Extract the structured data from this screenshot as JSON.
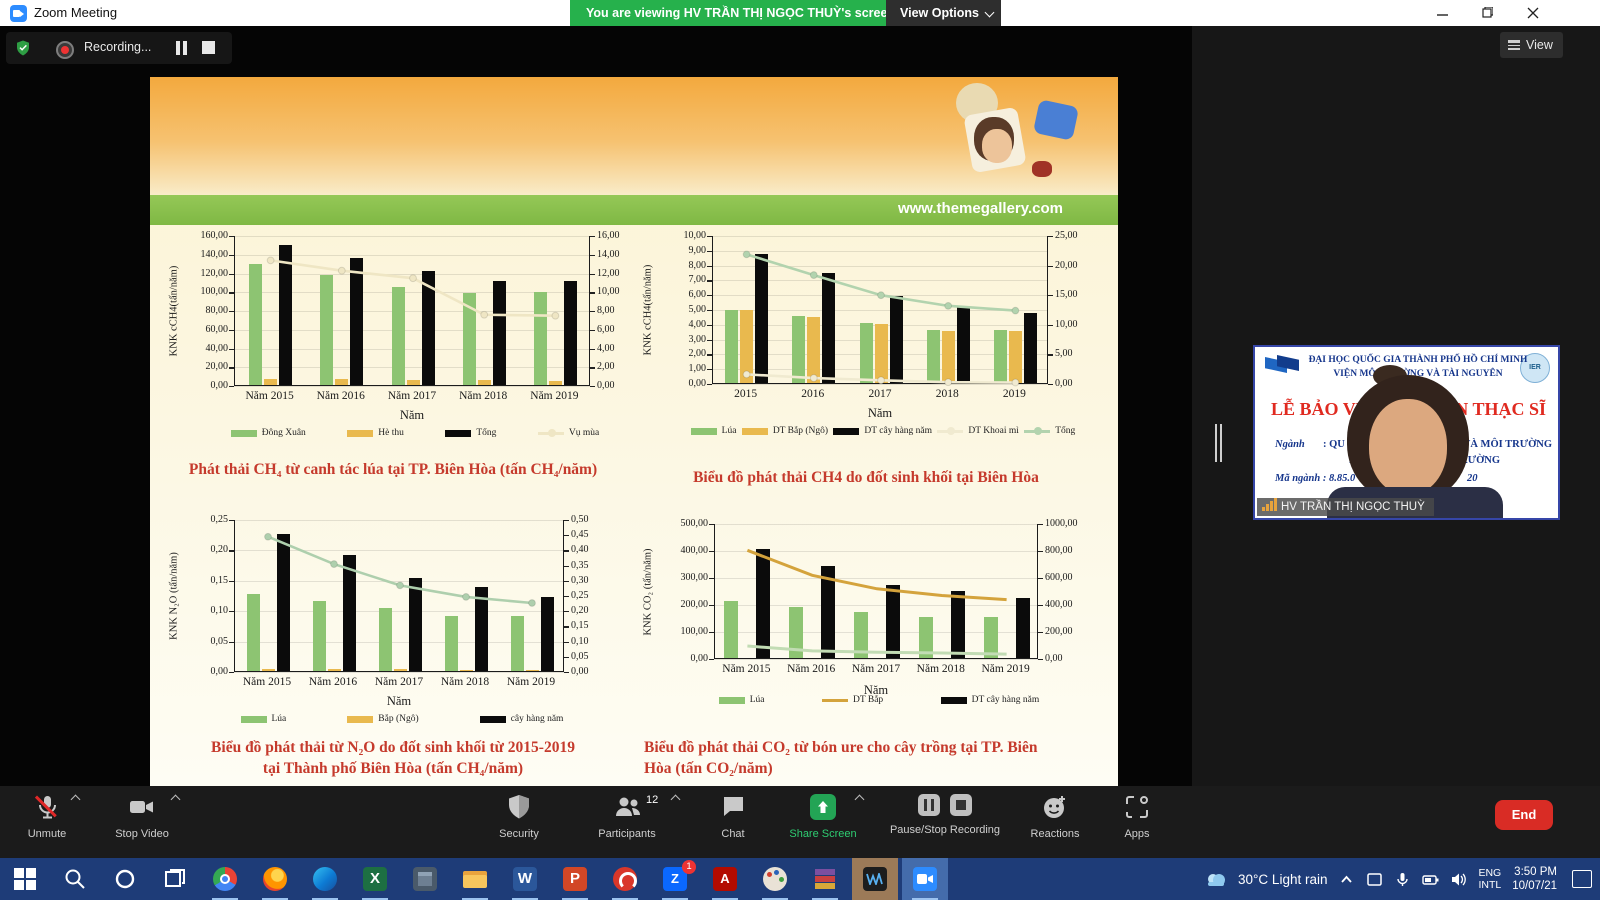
{
  "title_bar": {
    "app_title": "Zoom Meeting",
    "viewing_banner": "You are viewing HV TRẦN THỊ NGỌC THUỲ's screen",
    "view_options_label": "View Options"
  },
  "meeting_bar": {
    "recording_label": "Recording...",
    "view_button_label": "View"
  },
  "slide": {
    "website": "www.themegallery.com"
  },
  "chart_data": [
    {
      "id": "c1",
      "type": "bar+line",
      "ylabel_left": "KNK cCH4(tấn/năm)",
      "left_ticks": [
        "160,00",
        "140,00",
        "120,00",
        "100,00",
        "80,00",
        "60,00",
        "40,00",
        "20,00",
        "0,00"
      ],
      "right_ticks": [
        "16,00",
        "14,00",
        "12,00",
        "10,00",
        "8,00",
        "6,00",
        "4,00",
        "2,00",
        "0,00"
      ],
      "left_max": 160,
      "right_max": 16,
      "categories": [
        "Năm 2015",
        "Năm 2016",
        "Năm 2017",
        "Năm 2018",
        "Năm 2019"
      ],
      "xlabel": "Năm",
      "bar_series": [
        {
          "name": "Đông Xuân",
          "color": "#8dc472",
          "values": [
            129,
            117,
            105,
            98,
            99
          ]
        },
        {
          "name": "Hè thu",
          "color": "#e9b94e",
          "values": [
            6,
            6,
            5,
            5,
            4
          ]
        },
        {
          "name": "Tổng",
          "color": "#0b0b0b",
          "values": [
            149,
            135,
            122,
            111,
            111
          ]
        }
      ],
      "line_series": [
        {
          "name": "Vụ mùa",
          "color": "#efe6c4",
          "axis": "right",
          "marker": true,
          "values": [
            13.4,
            12.3,
            11.5,
            7.6,
            7.5
          ]
        }
      ],
      "legend": [
        {
          "label": "Đông Xuân",
          "type": "bar",
          "color": "#8dc472"
        },
        {
          "label": "Hè thu",
          "type": "bar",
          "color": "#e9b94e"
        },
        {
          "label": "Tổng",
          "type": "bar",
          "color": "#0b0b0b"
        },
        {
          "label": "Vụ mùa",
          "type": "line",
          "color": "#efe6c4",
          "marker": true
        }
      ],
      "caption_lines": [
        "Phát thải CH₄ từ canh tác lúa tại TP. Biên Hòa (tấn CH₄/năm)"
      ]
    },
    {
      "id": "c2",
      "type": "bar+line",
      "ylabel_left": "KNK cCH4(tấn/năm)",
      "left_ticks": [
        "10,00",
        "9,00",
        "8,00",
        "7,00",
        "6,00",
        "5,00",
        "4,00",
        "3,00",
        "2,00",
        "1,00",
        "0,00"
      ],
      "right_ticks": [
        "25,00",
        "20,00",
        "15,00",
        "10,00",
        "5,00",
        "0,00"
      ],
      "left_max": 10,
      "right_max": 25,
      "categories": [
        "2015",
        "2016",
        "2017",
        "2018",
        "2019"
      ],
      "xlabel": "Năm",
      "bar_series": [
        {
          "name": "Lúa",
          "color": "#8dc472",
          "values": [
            4.9,
            4.5,
            4.05,
            3.55,
            3.55
          ]
        },
        {
          "name": "DT Bắp (Ngô)",
          "color": "#e9b94e",
          "values": [
            4.9,
            4.45,
            4.0,
            3.5,
            3.5
          ]
        },
        {
          "name": "DT cây hàng năm",
          "color": "#0b0b0b",
          "values": [
            8.75,
            7.4,
            5.85,
            5.15,
            4.75
          ]
        }
      ],
      "line_series": [
        {
          "name": "DT Khoai mì",
          "color": "#f0ead0",
          "axis": "left",
          "marker": true,
          "values": [
            0.65,
            0.4,
            0.25,
            0.12,
            0.1
          ]
        },
        {
          "name": "Tổng",
          "color": "#b2d3ae",
          "axis": "right",
          "marker": true,
          "values": [
            21.9,
            18.4,
            15.0,
            13.2,
            12.4
          ]
        }
      ],
      "legend": [
        {
          "label": "Lúa",
          "type": "bar",
          "color": "#8dc472"
        },
        {
          "label": "DT Bắp (Ngô)",
          "type": "bar",
          "color": "#e9b94e"
        },
        {
          "label": "DT cây hàng năm",
          "type": "bar",
          "color": "#0b0b0b"
        },
        {
          "label": "DT Khoai mì",
          "type": "line",
          "color": "#f0ead0",
          "marker": true
        },
        {
          "label": "Tổng",
          "type": "line",
          "color": "#b2d3ae",
          "marker": true
        }
      ],
      "caption_lines": [
        "Biểu đồ phát thải CH4 do đốt sinh khối tại Biên Hòa"
      ]
    },
    {
      "id": "c3",
      "type": "bar+line",
      "ylabel_left": "KNK N₂O (tấn/năm)",
      "left_ticks": [
        "0,25",
        "0,20",
        "0,15",
        "0,10",
        "0,05",
        "0,00"
      ],
      "right_ticks": [
        "0,50",
        "0,45",
        "0,40",
        "0,35",
        "0,30",
        "0,25",
        "0,20",
        "0,15",
        "0,10",
        "0,05",
        "0,00"
      ],
      "left_max": 0.25,
      "right_max": 0.5,
      "categories": [
        "Năm 2015",
        "Năm 2016",
        "Năm 2017",
        "Năm 2018",
        "Năm 2019"
      ],
      "xlabel": "Năm",
      "bar_series": [
        {
          "name": "Lúa",
          "color": "#8dc472",
          "values": [
            0.127,
            0.115,
            0.104,
            0.091,
            0.091
          ]
        },
        {
          "name": "Bắp (Ngô)",
          "color": "#e9b94e",
          "values": [
            0.004,
            0.003,
            0.003,
            0.002,
            0.002
          ]
        },
        {
          "name": "cây hàng năm",
          "color": "#0b0b0b",
          "values": [
            0.225,
            0.19,
            0.153,
            0.139,
            0.122
          ]
        }
      ],
      "line_series": [
        {
          "name": "",
          "color": "#aecfad",
          "axis": "right",
          "marker": true,
          "values": [
            0.445,
            0.355,
            0.285,
            0.247,
            0.227
          ]
        }
      ],
      "legend": [
        {
          "label": "Lúa",
          "type": "bar",
          "color": "#8dc472"
        },
        {
          "label": "Bắp (Ngô)",
          "type": "bar",
          "color": "#e9b94e"
        },
        {
          "label": "cây hàng năm",
          "type": "bar",
          "color": "#0b0b0b"
        }
      ],
      "caption_lines": [
        "Biểu đồ phát thải từ N₂O do đốt sinh khối từ 2015-2019",
        "tại Thành phố Biên Hòa (tấn CH₄/năm)"
      ]
    },
    {
      "id": "c4",
      "type": "bar+line",
      "ylabel_left": "KNK CO₂ (tấn/năm)",
      "left_ticks": [
        "500,00",
        "400,00",
        "300,00",
        "200,00",
        "100,00",
        "0,00"
      ],
      "right_ticks": [
        "1000,00",
        "800,00",
        "600,00",
        "400,00",
        "200,00",
        "0,00"
      ],
      "left_max": 500,
      "right_max": 1000,
      "categories": [
        "Năm 2015",
        "Năm 2016",
        "Năm 2017",
        "Năm 2018",
        "Năm 2019"
      ],
      "xlabel": "Năm",
      "bar_series": [
        {
          "name": "Lúa",
          "color": "#8dc472",
          "values": [
            210,
            190,
            172,
            153,
            152
          ]
        },
        {
          "name": "DT cây hàng năm",
          "color": "#0b0b0b",
          "values": [
            405,
            340,
            272,
            248,
            222
          ]
        }
      ],
      "line_series": [
        {
          "name": "DT Bắp",
          "color": "#d4a33c",
          "axis": "right",
          "marker": false,
          "values": [
            805,
            620,
            520,
            470,
            440
          ]
        },
        {
          "name": "",
          "color": "#c2dcb4",
          "axis": "left",
          "marker": false,
          "values": [
            48,
            30,
            25,
            22,
            18
          ]
        }
      ],
      "legend": [
        {
          "label": "Lúa",
          "type": "bar",
          "color": "#8dc472"
        },
        {
          "label": "DT Bắp",
          "type": "line",
          "color": "#d4a33c"
        },
        {
          "label": "DT cây hàng năm",
          "type": "bar",
          "color": "#0b0b0b"
        }
      ],
      "caption_lines": [
        "Biểu đồ phát thải CO₂ từ bón ure cho cây trồng tại TP. Biên",
        "Hòa (tấn CO₂/năm)"
      ]
    }
  ],
  "webcam": {
    "banner_line1": "ĐẠI HỌC QUỐC GIA THÀNH PHỐ HỒ CHÍ MINH",
    "banner_line2": "VIỆN MÔI TRƯỜNG VÀ TÀI NGUYÊN",
    "logo_right_label": "IER",
    "title_left": "LỄ BẢO VỆ",
    "title_right": "VĂN THẠC SĨ",
    "nganh_label": "Ngành",
    "nganh_value_left": ": QU",
    "nganh_value_right": "ÊN VÀ MÔI TRƯỜNG",
    "line2_left": "KỸ",
    "line2_right": "RƯỜNG",
    "ma_nganh_left": "Mã ngành : 8.85.0",
    "ma_nganh_right": "20",
    "name_tag": "HV TRẦN THỊ NGỌC THUỲ"
  },
  "toolbar": {
    "items": [
      {
        "label": "Unmute"
      },
      {
        "label": "Stop Video"
      },
      {
        "label": "Security"
      },
      {
        "label": "Participants",
        "badge": "12"
      },
      {
        "label": "Chat"
      },
      {
        "label": "Share Screen"
      },
      {
        "label": "Pause/Stop Recording"
      },
      {
        "label": "Reactions"
      },
      {
        "label": "Apps"
      }
    ],
    "end_label": "End"
  },
  "taskbar": {
    "weather": "30°C Light rain",
    "language_line1": "ENG",
    "language_line2": "INTL",
    "time": "3:50 PM",
    "date": "10/07/21",
    "zalo_badge": "1"
  },
  "colors": {
    "viewing_banner_green": "#26b14c",
    "share_screen_green": "#2ecc71",
    "end_red": "#d92c25",
    "caption_red": "#c53a2c",
    "taskbar_blue": "#1e3c78",
    "slide_green_bar": "#7fb844",
    "slide_header_orange": "#f3a93e"
  }
}
